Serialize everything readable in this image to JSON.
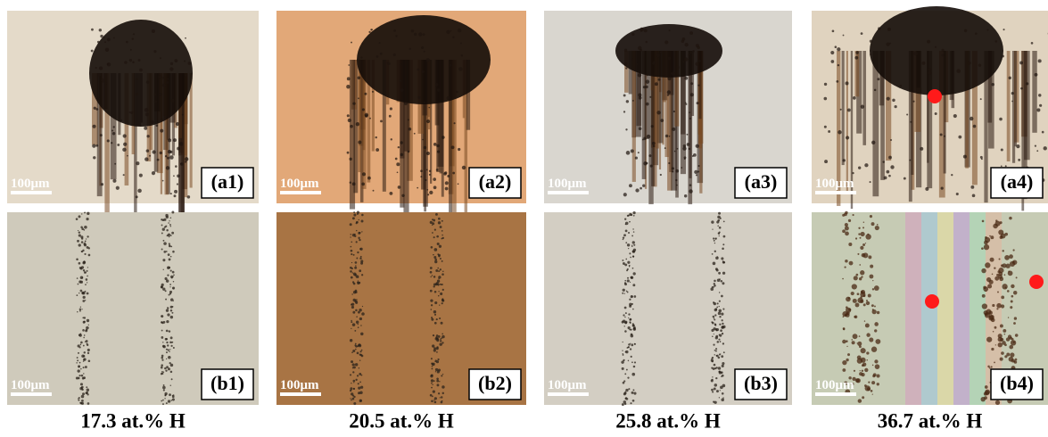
{
  "panels": [
    {
      "label": "(a1)",
      "scale": "100μm"
    },
    {
      "label": "(a2)",
      "scale": "100μm"
    },
    {
      "label": "(a3)",
      "scale": "100μm"
    },
    {
      "label": "(a4)",
      "scale": "100μm"
    },
    {
      "label": "(b1)",
      "scale": "100μm"
    },
    {
      "label": "(b2)",
      "scale": "100μm"
    },
    {
      "label": "(b3)",
      "scale": "100μm"
    },
    {
      "label": "(b4)",
      "scale": "100μm"
    }
  ],
  "captions": [
    "17.3 at.% H",
    "20.5 at.% H",
    "25.8 at.% H",
    "36.7 at.% H"
  ]
}
